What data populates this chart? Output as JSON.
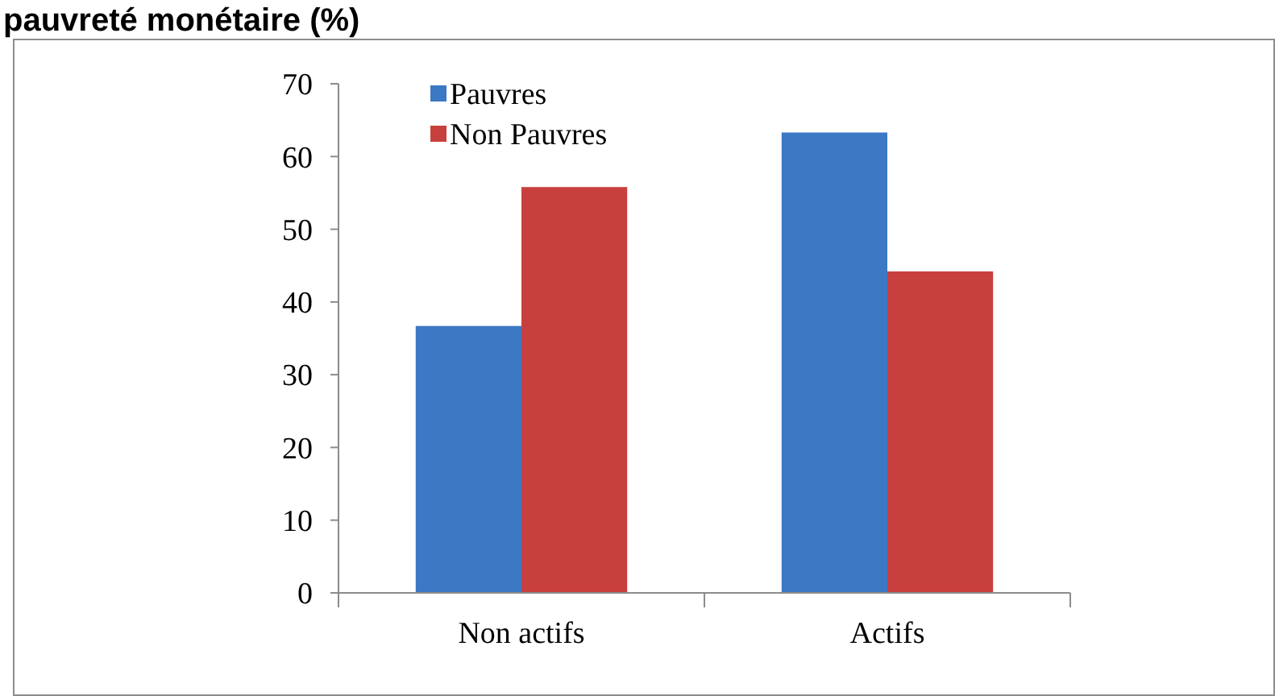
{
  "chart_data": {
    "type": "bar",
    "title": "pauvreté monétaire (%)",
    "categories": [
      "Non actifs",
      "Actifs"
    ],
    "series": [
      {
        "name": "Pauvres",
        "color": "#3c78c4",
        "values": [
          36.7,
          63.3
        ]
      },
      {
        "name": "Non Pauvres",
        "color": "#c8403d",
        "values": [
          55.8,
          44.2
        ]
      }
    ],
    "ylim": [
      0,
      70
    ],
    "yticks": [
      0,
      10,
      20,
      30,
      40,
      50,
      60,
      70
    ],
    "grid": false,
    "legend": "top left"
  }
}
